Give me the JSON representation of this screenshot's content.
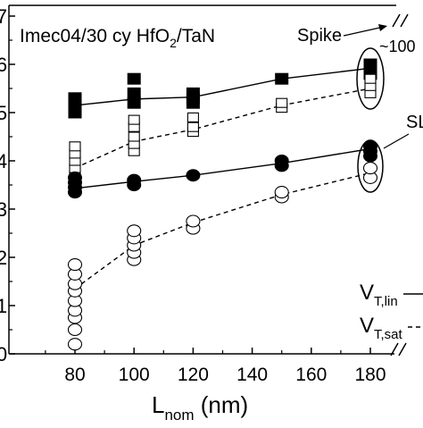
{
  "chart_data": {
    "type": "scatter",
    "title": "",
    "sample_label_prefix": "Imec04/30 cy HfO",
    "sample_label_sub": "2",
    "sample_label_suffix": "/TaN",
    "xlabel": "L",
    "xlabel_sub": "nom",
    "xlabel_unit": " (nm)",
    "ylabel": "",
    "xlim": [
      70,
      190
    ],
    "ylim": [
      0,
      7
    ],
    "x_ticks": [
      80,
      100,
      120,
      140,
      160,
      180
    ],
    "y_tick_labels": [
      "0",
      "1",
      "2",
      "3",
      "4",
      "5",
      "6",
      "7"
    ],
    "grid": false,
    "series": [
      {
        "name": "spike_vtlin",
        "marker": "filled-square",
        "line": "solid",
        "points": [
          [
            80,
            5.0
          ],
          [
            80,
            5.1
          ],
          [
            80,
            5.2
          ],
          [
            80,
            5.3
          ],
          [
            100,
            5.2
          ],
          [
            100,
            5.4
          ],
          [
            100,
            5.7
          ],
          [
            120,
            5.2
          ],
          [
            120,
            5.3
          ],
          [
            120,
            5.4
          ],
          [
            150,
            5.7
          ],
          [
            180,
            5.8
          ],
          [
            180,
            5.9
          ],
          [
            180,
            6.0
          ]
        ],
        "trend": [
          [
            80,
            5.15
          ],
          [
            100,
            5.28
          ],
          [
            120,
            5.32
          ],
          [
            150,
            5.7
          ],
          [
            180,
            5.92
          ]
        ]
      },
      {
        "name": "spike_vtsat",
        "marker": "open-square",
        "line": "dashed",
        "points": [
          [
            80,
            3.7
          ],
          [
            80,
            3.85
          ],
          [
            80,
            4.0
          ],
          [
            80,
            4.15
          ],
          [
            80,
            4.3
          ],
          [
            100,
            4.2
          ],
          [
            100,
            4.35
          ],
          [
            100,
            4.5
          ],
          [
            100,
            4.7
          ],
          [
            100,
            4.85
          ],
          [
            120,
            4.6
          ],
          [
            120,
            4.7
          ],
          [
            120,
            4.9
          ],
          [
            150,
            5.1
          ],
          [
            150,
            5.2
          ],
          [
            180,
            5.4
          ],
          [
            180,
            5.55
          ],
          [
            180,
            5.7
          ]
        ],
        "trend": [
          [
            80,
            3.85
          ],
          [
            100,
            4.4
          ],
          [
            120,
            4.65
          ],
          [
            150,
            5.15
          ],
          [
            180,
            5.5
          ]
        ]
      },
      {
        "name": "sl_vtlin",
        "marker": "filled-circle",
        "line": "solid",
        "points": [
          [
            80,
            3.35
          ],
          [
            80,
            3.45
          ],
          [
            80,
            3.55
          ],
          [
            80,
            3.65
          ],
          [
            100,
            3.5
          ],
          [
            100,
            3.6
          ],
          [
            120,
            3.7
          ],
          [
            150,
            3.9
          ],
          [
            150,
            4.0
          ],
          [
            180,
            4.1
          ],
          [
            180,
            4.2
          ],
          [
            180,
            4.3
          ]
        ],
        "trend": [
          [
            80,
            3.43
          ],
          [
            100,
            3.57
          ],
          [
            120,
            3.7
          ],
          [
            150,
            3.95
          ],
          [
            180,
            4.25
          ]
        ]
      },
      {
        "name": "sl_vtsat",
        "marker": "open-circle",
        "line": "dashed",
        "points": [
          [
            80,
            0.2
          ],
          [
            80,
            0.5
          ],
          [
            80,
            0.75
          ],
          [
            80,
            0.9
          ],
          [
            80,
            1.1
          ],
          [
            80,
            1.3
          ],
          [
            80,
            1.45
          ],
          [
            80,
            1.65
          ],
          [
            80,
            1.85
          ],
          [
            100,
            1.95
          ],
          [
            100,
            2.1
          ],
          [
            100,
            2.25
          ],
          [
            100,
            2.4
          ],
          [
            100,
            2.55
          ],
          [
            120,
            2.6
          ],
          [
            120,
            2.75
          ],
          [
            150,
            3.25
          ],
          [
            150,
            3.35
          ],
          [
            180,
            3.65
          ],
          [
            180,
            3.85
          ]
        ],
        "trend": [
          [
            80,
            1.35
          ],
          [
            100,
            2.25
          ],
          [
            120,
            2.72
          ],
          [
            150,
            3.3
          ],
          [
            180,
            3.75
          ]
        ]
      }
    ],
    "annotations": {
      "spike": "Spike",
      "hundred": "~100",
      "sl": "SL",
      "vt_lin_main": "V",
      "vt_lin_sub": "T,lin",
      "vt_sat_main": "V",
      "vt_sat_sub": "T,sat"
    }
  }
}
